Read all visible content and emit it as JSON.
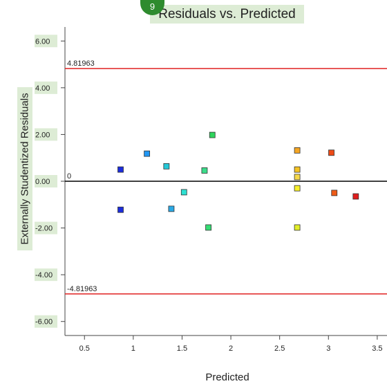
{
  "chart_data": {
    "type": "scatter",
    "title": "Residuals vs. Predicted",
    "badge": "9",
    "xlabel": "Predicted",
    "ylabel": "Externally Studentized Residuals",
    "xlim": [
      0.3,
      3.6
    ],
    "ylim": [
      -6.6,
      6.6
    ],
    "xticks": [
      {
        "v": 0.5,
        "label": "0.5"
      },
      {
        "v": 1,
        "label": "1"
      },
      {
        "v": 1.5,
        "label": "1.5"
      },
      {
        "v": 2,
        "label": "2"
      },
      {
        "v": 2.5,
        "label": "2.5"
      },
      {
        "v": 3,
        "label": "3"
      },
      {
        "v": 3.5,
        "label": "3.5"
      }
    ],
    "yticks": [
      {
        "v": 6,
        "label": "6.00"
      },
      {
        "v": 4,
        "label": "4.00"
      },
      {
        "v": 2,
        "label": "2.00"
      },
      {
        "v": 0,
        "label": "0.00"
      },
      {
        "v": -2,
        "label": "-2.00"
      },
      {
        "v": -4,
        "label": "-4.00"
      },
      {
        "v": -6,
        "label": "-6.00"
      }
    ],
    "reference_lines": [
      {
        "y": 4.81963,
        "label": "4.81963",
        "color": "#e02020"
      },
      {
        "y": 0,
        "label": "0",
        "color": "#000000"
      },
      {
        "y": -4.81963,
        "label": "-4.81963",
        "color": "#e02020"
      }
    ],
    "points": [
      {
        "x": 0.87,
        "y": 0.5,
        "color": "#1c2ddc"
      },
      {
        "x": 0.87,
        "y": -1.22,
        "color": "#1c2ddc"
      },
      {
        "x": 1.14,
        "y": 1.18,
        "color": "#2196f3"
      },
      {
        "x": 1.34,
        "y": 0.64,
        "color": "#25c8d8"
      },
      {
        "x": 1.39,
        "y": -1.18,
        "color": "#2aa9e6"
      },
      {
        "x": 1.52,
        "y": -0.47,
        "color": "#2ee0d2"
      },
      {
        "x": 1.73,
        "y": 0.46,
        "color": "#3bdc8a"
      },
      {
        "x": 1.77,
        "y": -1.98,
        "color": "#35dc73"
      },
      {
        "x": 1.81,
        "y": 1.98,
        "color": "#2ed45c"
      },
      {
        "x": 2.68,
        "y": 1.32,
        "color": "#f5a623"
      },
      {
        "x": 2.68,
        "y": 0.5,
        "color": "#f5c323"
      },
      {
        "x": 2.68,
        "y": 0.18,
        "color": "#f5d94a"
      },
      {
        "x": 2.68,
        "y": -0.3,
        "color": "#f7ef2a"
      },
      {
        "x": 2.68,
        "y": -1.98,
        "color": "#e2ee28"
      },
      {
        "x": 3.03,
        "y": 1.22,
        "color": "#ee4b17"
      },
      {
        "x": 3.06,
        "y": -0.5,
        "color": "#ee5b17"
      },
      {
        "x": 3.28,
        "y": -0.65,
        "color": "#e01e1e"
      }
    ]
  }
}
